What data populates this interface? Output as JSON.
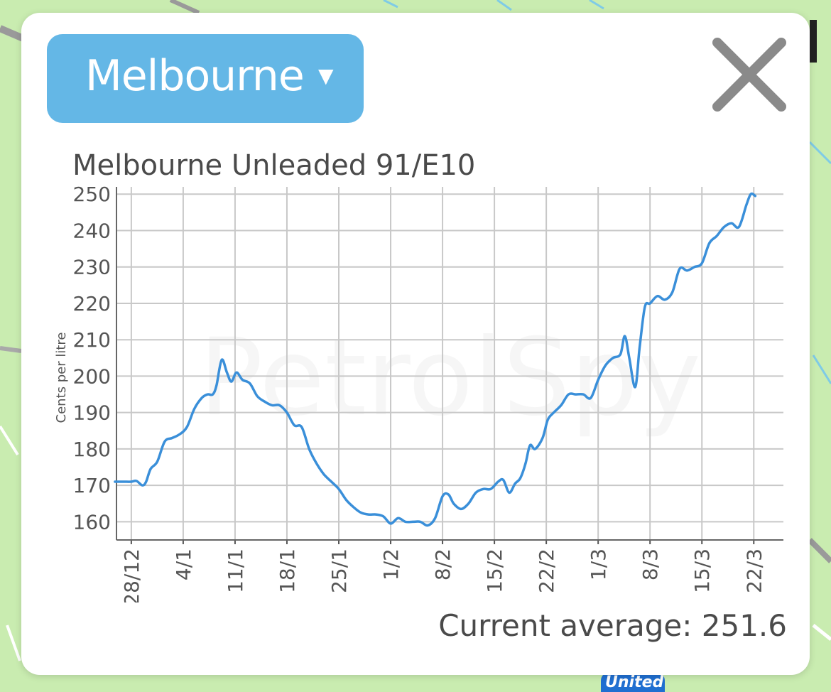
{
  "city_selector": {
    "label": "Melbourne",
    "caret": "▼"
  },
  "close_button": {
    "icon": "close-icon"
  },
  "watermark": "PetrolSpy",
  "map_badge": "United",
  "current_average": {
    "text": "Current average: 251.6"
  },
  "chart_data": {
    "type": "line",
    "title": "Melbourne Unleaded 91/E10",
    "ylabel": "Cents per litre",
    "xlabel": "",
    "ylim": [
      155,
      252
    ],
    "yticks": [
      160,
      170,
      180,
      190,
      200,
      210,
      220,
      230,
      240,
      250
    ],
    "xlim_days": [
      -2,
      88
    ],
    "xticks": [
      {
        "label": "28/12",
        "day": 0
      },
      {
        "label": "4/1",
        "day": 7
      },
      {
        "label": "11/1",
        "day": 14
      },
      {
        "label": "18/1",
        "day": 21
      },
      {
        "label": "25/1",
        "day": 28
      },
      {
        "label": "1/2",
        "day": 35
      },
      {
        "label": "8/2",
        "day": 42
      },
      {
        "label": "15/2",
        "day": 49
      },
      {
        "label": "22/2",
        "day": 56
      },
      {
        "label": "1/3",
        "day": 63
      },
      {
        "label": "8/3",
        "day": 70
      },
      {
        "label": "15/3",
        "day": 77
      },
      {
        "label": "22/3",
        "day": 84
      }
    ],
    "grid": true,
    "color": "#3a8fd9",
    "series": [
      {
        "values": [
          [
            -2.2,
            171
          ],
          [
            -1,
            171
          ],
          [
            0,
            171
          ],
          [
            0.7,
            171.2
          ],
          [
            1.5,
            170
          ],
          [
            2,
            171
          ],
          [
            2.6,
            174.5
          ],
          [
            3.5,
            176.5
          ],
          [
            4.5,
            182
          ],
          [
            5.5,
            183
          ],
          [
            6.5,
            184
          ],
          [
            7.5,
            186
          ],
          [
            8.5,
            191
          ],
          [
            9.5,
            194
          ],
          [
            10.3,
            195
          ],
          [
            11,
            195
          ],
          [
            11.5,
            197.5
          ],
          [
            12.2,
            204.5
          ],
          [
            12.9,
            201
          ],
          [
            13.5,
            198.5
          ],
          [
            14.2,
            201
          ],
          [
            15,
            199
          ],
          [
            16,
            198
          ],
          [
            17,
            194.5
          ],
          [
            18,
            193
          ],
          [
            19,
            192
          ],
          [
            20,
            192
          ],
          [
            21,
            190
          ],
          [
            22,
            186.5
          ],
          [
            23,
            186
          ],
          [
            24,
            180
          ],
          [
            25,
            176
          ],
          [
            26,
            173
          ],
          [
            27,
            171
          ],
          [
            28,
            169
          ],
          [
            29,
            166
          ],
          [
            30,
            164
          ],
          [
            31,
            162.5
          ],
          [
            32,
            162
          ],
          [
            33,
            162
          ],
          [
            34,
            161.5
          ],
          [
            35,
            159.5
          ],
          [
            36,
            161
          ],
          [
            37,
            160
          ],
          [
            38,
            160
          ],
          [
            39,
            160
          ],
          [
            40,
            159
          ],
          [
            41,
            161
          ],
          [
            42,
            167
          ],
          [
            42.8,
            167.5
          ],
          [
            43.5,
            165
          ],
          [
            44.5,
            163.5
          ],
          [
            45.5,
            165
          ],
          [
            46.5,
            168
          ],
          [
            47.5,
            169
          ],
          [
            48.5,
            169
          ],
          [
            49.5,
            171
          ],
          [
            50.2,
            171.5
          ],
          [
            51,
            168
          ],
          [
            51.8,
            170.5
          ],
          [
            52.5,
            172
          ],
          [
            53.2,
            176
          ],
          [
            53.8,
            181
          ],
          [
            54.5,
            180
          ],
          [
            55.5,
            183
          ],
          [
            56.2,
            188
          ],
          [
            57,
            190
          ],
          [
            58,
            192
          ],
          [
            59,
            195
          ],
          [
            60,
            195
          ],
          [
            61,
            195
          ],
          [
            62,
            194
          ],
          [
            63,
            199
          ],
          [
            64,
            203
          ],
          [
            65,
            205
          ],
          [
            66,
            206
          ],
          [
            66.6,
            211
          ],
          [
            67.2,
            205
          ],
          [
            68,
            197
          ],
          [
            68.6,
            208
          ],
          [
            69.3,
            219
          ],
          [
            70,
            220
          ],
          [
            71,
            222
          ],
          [
            72,
            221
          ],
          [
            73,
            223
          ],
          [
            74,
            229.5
          ],
          [
            75,
            229
          ],
          [
            76,
            230
          ],
          [
            77,
            231
          ],
          [
            78,
            236.5
          ],
          [
            79,
            238.5
          ],
          [
            80,
            241
          ],
          [
            81,
            242
          ],
          [
            82,
            241
          ],
          [
            83,
            247
          ],
          [
            83.6,
            250
          ],
          [
            84.2,
            249.5
          ]
        ]
      }
    ]
  }
}
